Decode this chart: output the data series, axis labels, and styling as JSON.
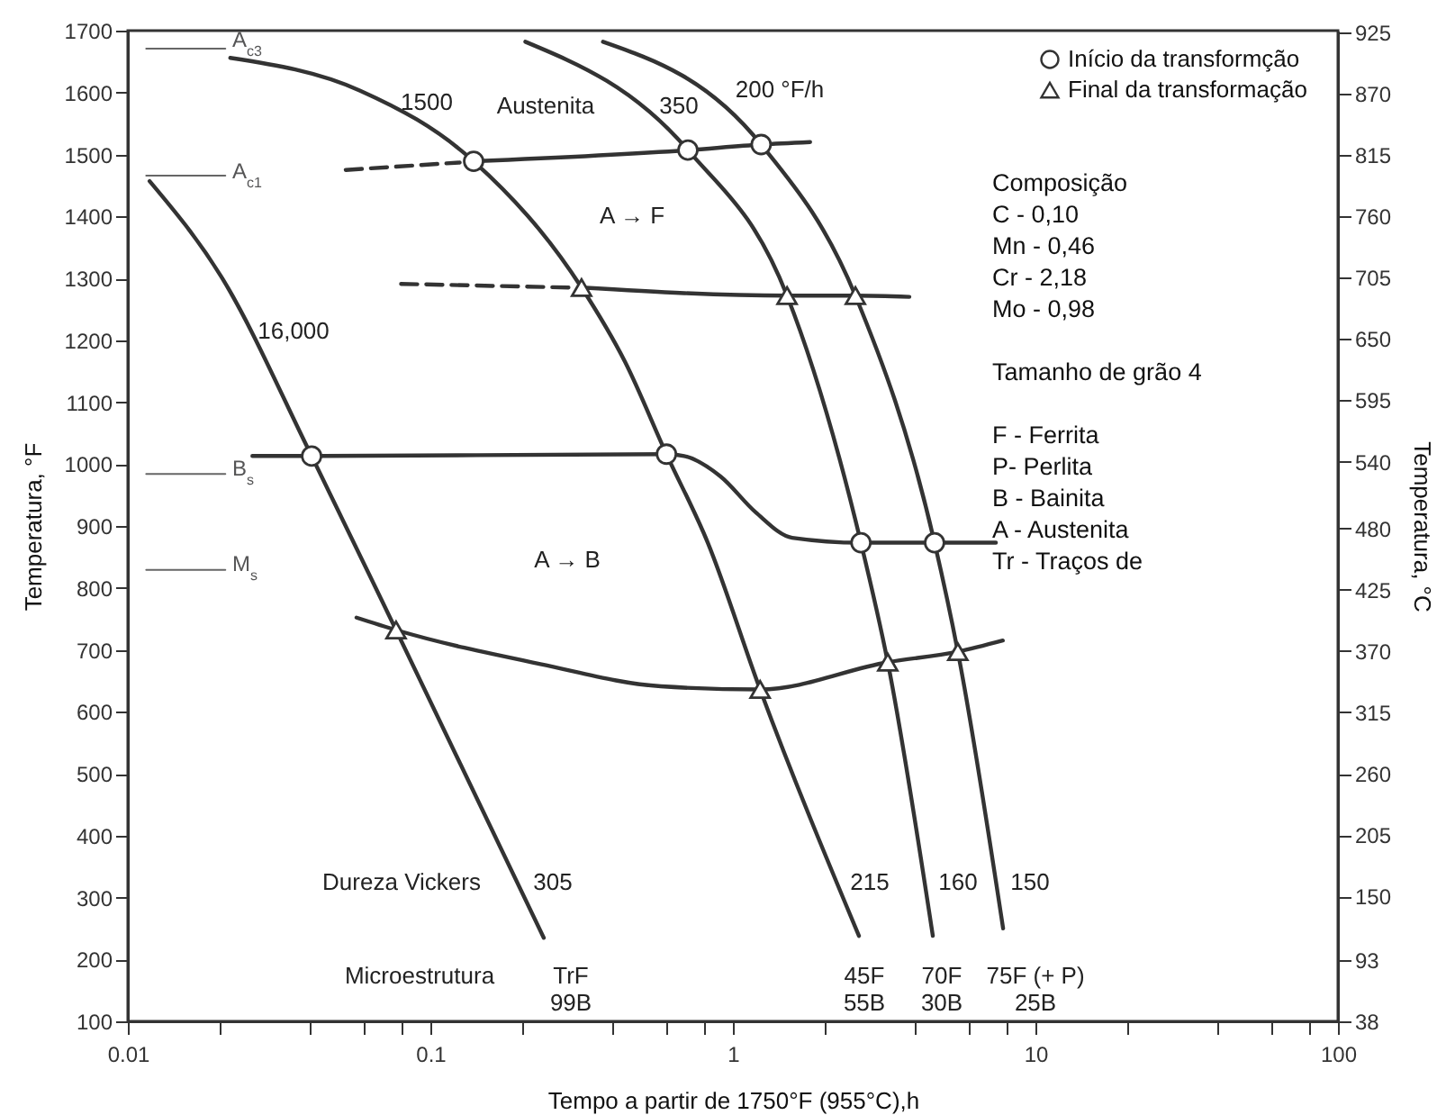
{
  "chart_data": {
    "type": "line",
    "xlabel": "Tempo a partir de 1750°F (955°C),h",
    "ylabel": "Temperatura, °F",
    "y2label": "Temperatura, °C",
    "log": "x",
    "xlim": [
      0.01,
      100
    ],
    "ylim": [
      100,
      1700
    ],
    "y2lim": [
      37.8,
      926.7
    ],
    "xticks": [
      0.01,
      {
        "value": 0.02,
        "label": null
      },
      {
        "value": 0.04,
        "label": null
      },
      {
        "value": 0.06,
        "label": null
      },
      {
        "value": 0.08,
        "label": null
      },
      0.1,
      {
        "value": 0.2,
        "label": null
      },
      {
        "value": 0.4,
        "label": null
      },
      {
        "value": 0.6,
        "label": null
      },
      {
        "value": 0.8,
        "label": null
      },
      1,
      {
        "value": 2,
        "label": null
      },
      {
        "value": 4,
        "label": null
      },
      {
        "value": 6,
        "label": null
      },
      {
        "value": 8,
        "label": null
      },
      10,
      {
        "value": 20,
        "label": null
      },
      {
        "value": 40,
        "label": null
      },
      {
        "value": 60,
        "label": null
      },
      {
        "value": 80,
        "label": null
      },
      100
    ],
    "yticks": [
      100,
      200,
      300,
      400,
      500,
      600,
      700,
      800,
      900,
      1000,
      1100,
      1200,
      1300,
      1400,
      1500,
      1600,
      1700
    ],
    "y2ticks": [
      38,
      93,
      150,
      205,
      260,
      315,
      370,
      425,
      480,
      540,
      595,
      650,
      705,
      760,
      815,
      870,
      925
    ],
    "grid": false,
    "legend": "top right",
    "line_style": "solid",
    "series": [
      {
        "color": "#333333",
        "x": [
          0.0118,
          0.0204,
          0.0405,
          0.077,
          0.237
        ],
        "values": [
          1457,
          1302,
          1013,
          732,
          235
        ]
      },
      {
        "color": "#333333",
        "x": [
          0.0218,
          0.0586,
          0.139,
          0.316,
          0.44,
          0.603,
          0.826,
          1.23,
          2.61
        ],
        "values": [
          1656,
          1603,
          1489,
          1285,
          1165,
          1016,
          873,
          636,
          238
        ]
      },
      {
        "color": "#333333",
        "x": [
          0.206,
          0.71,
          1.51,
          2.65,
          3.25,
          4.58
        ],
        "values": [
          1682,
          1507,
          1272,
          873,
          680,
          238
        ]
      },
      {
        "color": "#333333",
        "x": [
          0.372,
          1.24,
          2.54,
          4.64,
          5.54,
          7.82
        ],
        "values": [
          1682,
          1516,
          1272,
          873,
          697,
          250
        ]
      },
      {
        "color": "#333333",
        "line_style": "dashed",
        "x": [
          0.0525,
          0.125
        ],
        "values": [
          1475,
          1487
        ]
      },
      {
        "color": "#333333",
        "x": [
          0.139,
          0.71,
          1.24,
          1.8
        ],
        "values": [
          1489,
          1507,
          1516,
          1520
        ]
      },
      {
        "color": "#333333",
        "line_style": "dashed",
        "x": [
          0.08,
          0.29
        ],
        "values": [
          1291,
          1285
        ]
      },
      {
        "color": "#333333",
        "x": [
          0.316,
          1.51,
          2.54,
          3.83
        ],
        "values": [
          1285,
          1272,
          1272,
          1270
        ]
      },
      {
        "color": "#333333",
        "x": [
          0.0258,
          0.0405,
          0.603,
          0.69,
          0.91,
          1.19,
          1.57,
          2.65,
          4.64,
          7.4
        ],
        "values": [
          1013,
          1013,
          1016,
          1013,
          980,
          922,
          881,
          873,
          873,
          873
        ]
      },
      {
        "color": "#333333",
        "x": [
          0.057,
          0.077,
          0.231,
          0.578,
          1.23,
          3.25,
          5.54,
          7.8
        ],
        "values": [
          752,
          732,
          677,
          641,
          636,
          680,
          697,
          715
        ]
      },
      {
        "color": "#666666",
        "x": [
          0.0115,
          0.021
        ],
        "values": [
          1671,
          1671
        ]
      },
      {
        "color": "#666666",
        "x": [
          0.0115,
          0.021
        ],
        "values": [
          1466,
          1466
        ]
      },
      {
        "color": "#666666",
        "x": [
          0.0115,
          0.021
        ],
        "values": [
          984,
          984
        ]
      },
      {
        "color": "#666666",
        "x": [
          0.0115,
          0.021
        ],
        "values": [
          829,
          829
        ]
      },
      {
        "type": "scatter",
        "name": "Início da transformção",
        "marker": "circle",
        "color": "#333333",
        "x": [
          0.0405,
          0.139,
          0.603,
          0.71,
          1.24,
          2.65,
          4.64
        ],
        "values": [
          1013,
          1489,
          1016,
          1507,
          1516,
          873,
          873
        ]
      },
      {
        "type": "scatter",
        "name": "Final da transformação",
        "marker": "triangle",
        "color": "#333333",
        "x": [
          0.077,
          0.316,
          1.23,
          1.51,
          2.54,
          3.25,
          5.54
        ],
        "values": [
          732,
          1285,
          636,
          1272,
          1272,
          680,
          697
        ]
      }
    ],
    "annotations": [
      "1500",
      "16,000",
      "350",
      "200 °F/h",
      "Austenita",
      "A → F",
      "A → B",
      "Dureza Vickers",
      "305",
      "215",
      "160",
      "150",
      "Microestrutura",
      "TrF\n99B",
      "45F\n55B",
      "70F\n30B",
      "75F (+ P)\n25B",
      "A$_{c3}$",
      "A$_{c1}$",
      "B$_{s}$",
      "M$_{s}$",
      "Composição\nC - 0,10\nMn - 0,46\nCr - 2,18\nMo - 0,98",
      "Tamanho de grão 4",
      "F - Ferrita\nP- Perlita\nB - Bainita\nA - Austenita\nTr - Traços de"
    ]
  }
}
